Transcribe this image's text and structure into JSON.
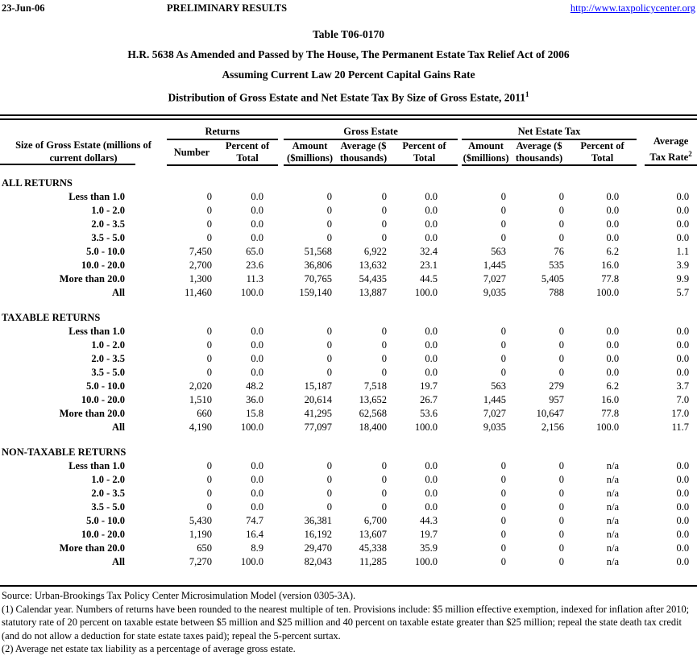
{
  "page": {
    "date": "23-Jun-06",
    "status": "PRELIMINARY RESULTS",
    "url": "http://www.taxpolicycenter.org"
  },
  "title": {
    "line1": "Table T06-0170",
    "line2": "H.R. 5638 As Amended and Passed by The House, The Permanent Estate Tax Relief Act of 2006",
    "line3": "Assuming Current Law 20 Percent Capital Gains Rate",
    "line4": "Distribution of Gross Estate and Net Estate Tax By Size of Gross Estate, 2011",
    "line4_sup": "1"
  },
  "table": {
    "row_header": "Size of Gross Estate (millions of\ncurrent dollars)",
    "groups": [
      {
        "label": "Returns",
        "columns": [
          "Number",
          "Percent of\nTotal"
        ]
      },
      {
        "label": "Gross Estate",
        "columns": [
          "Amount\n($millions)",
          "Average ($\nthousands)",
          "Percent of\nTotal"
        ]
      },
      {
        "label": "Net Estate Tax",
        "columns": [
          "Amount\n($millions)",
          "Average ($\nthousands)",
          "Percent of\nTotal"
        ]
      }
    ],
    "avg_header": {
      "line1": "Average",
      "line2": "Tax Rate",
      "sup": "2"
    },
    "sections": [
      {
        "name": "ALL RETURNS",
        "rows": [
          {
            "label": "Less than 1.0",
            "values": [
              "0",
              "0.0",
              "0",
              "0",
              "0.0",
              "0",
              "0",
              "0.0",
              "0.0"
            ]
          },
          {
            "label": "1.0 - 2.0",
            "values": [
              "0",
              "0.0",
              "0",
              "0",
              "0.0",
              "0",
              "0",
              "0.0",
              "0.0"
            ]
          },
          {
            "label": "2.0 - 3.5",
            "values": [
              "0",
              "0.0",
              "0",
              "0",
              "0.0",
              "0",
              "0",
              "0.0",
              "0.0"
            ]
          },
          {
            "label": "3.5 - 5.0",
            "values": [
              "0",
              "0.0",
              "0",
              "0",
              "0.0",
              "0",
              "0",
              "0.0",
              "0.0"
            ]
          },
          {
            "label": "5.0 - 10.0",
            "values": [
              "7,450",
              "65.0",
              "51,568",
              "6,922",
              "32.4",
              "563",
              "76",
              "6.2",
              "1.1"
            ]
          },
          {
            "label": "10.0 - 20.0",
            "values": [
              "2,700",
              "23.6",
              "36,806",
              "13,632",
              "23.1",
              "1,445",
              "535",
              "16.0",
              "3.9"
            ]
          },
          {
            "label": "More than 20.0",
            "values": [
              "1,300",
              "11.3",
              "70,765",
              "54,435",
              "44.5",
              "7,027",
              "5,405",
              "77.8",
              "9.9"
            ]
          },
          {
            "label": "All",
            "values": [
              "11,460",
              "100.0",
              "159,140",
              "13,887",
              "100.0",
              "9,035",
              "788",
              "100.0",
              "5.7"
            ]
          }
        ]
      },
      {
        "name": "TAXABLE RETURNS",
        "rows": [
          {
            "label": "Less than 1.0",
            "values": [
              "0",
              "0.0",
              "0",
              "0",
              "0.0",
              "0",
              "0",
              "0.0",
              "0.0"
            ]
          },
          {
            "label": "1.0 - 2.0",
            "values": [
              "0",
              "0.0",
              "0",
              "0",
              "0.0",
              "0",
              "0",
              "0.0",
              "0.0"
            ]
          },
          {
            "label": "2.0 - 3.5",
            "values": [
              "0",
              "0.0",
              "0",
              "0",
              "0.0",
              "0",
              "0",
              "0.0",
              "0.0"
            ]
          },
          {
            "label": "3.5 - 5.0",
            "values": [
              "0",
              "0.0",
              "0",
              "0",
              "0.0",
              "0",
              "0",
              "0.0",
              "0.0"
            ]
          },
          {
            "label": "5.0 - 10.0",
            "values": [
              "2,020",
              "48.2",
              "15,187",
              "7,518",
              "19.7",
              "563",
              "279",
              "6.2",
              "3.7"
            ]
          },
          {
            "label": "10.0 - 20.0",
            "values": [
              "1,510",
              "36.0",
              "20,614",
              "13,652",
              "26.7",
              "1,445",
              "957",
              "16.0",
              "7.0"
            ]
          },
          {
            "label": "More than 20.0",
            "values": [
              "660",
              "15.8",
              "41,295",
              "62,568",
              "53.6",
              "7,027",
              "10,647",
              "77.8",
              "17.0"
            ]
          },
          {
            "label": "All",
            "values": [
              "4,190",
              "100.0",
              "77,097",
              "18,400",
              "100.0",
              "9,035",
              "2,156",
              "100.0",
              "11.7"
            ]
          }
        ]
      },
      {
        "name": "NON-TAXABLE RETURNS",
        "rows": [
          {
            "label": "Less than 1.0",
            "values": [
              "0",
              "0.0",
              "0",
              "0",
              "0.0",
              "0",
              "0",
              "n/a",
              "0.0"
            ]
          },
          {
            "label": "1.0 - 2.0",
            "values": [
              "0",
              "0.0",
              "0",
              "0",
              "0.0",
              "0",
              "0",
              "n/a",
              "0.0"
            ]
          },
          {
            "label": "2.0 - 3.5",
            "values": [
              "0",
              "0.0",
              "0",
              "0",
              "0.0",
              "0",
              "0",
              "n/a",
              "0.0"
            ]
          },
          {
            "label": "3.5 - 5.0",
            "values": [
              "0",
              "0.0",
              "0",
              "0",
              "0.0",
              "0",
              "0",
              "n/a",
              "0.0"
            ]
          },
          {
            "label": "5.0 - 10.0",
            "values": [
              "5,430",
              "74.7",
              "36,381",
              "6,700",
              "44.3",
              "0",
              "0",
              "n/a",
              "0.0"
            ]
          },
          {
            "label": "10.0 - 20.0",
            "values": [
              "1,190",
              "16.4",
              "16,192",
              "13,607",
              "19.7",
              "0",
              "0",
              "n/a",
              "0.0"
            ]
          },
          {
            "label": "More than 20.0",
            "values": [
              "650",
              "8.9",
              "29,470",
              "45,338",
              "35.9",
              "0",
              "0",
              "n/a",
              "0.0"
            ]
          },
          {
            "label": "All",
            "values": [
              "7,270",
              "100.0",
              "82,043",
              "11,285",
              "100.0",
              "0",
              "0",
              "n/a",
              "0.0"
            ]
          }
        ]
      }
    ]
  },
  "footer": {
    "source": "Source: Urban-Brookings Tax Policy Center Microsimulation Model (version 0305-3A).",
    "note1": "(1) Calendar year. Numbers of returns have been rounded to the nearest multiple of ten. Provisions include: $5 million effective exemption, indexed for inflation after 2010;  statutory rate of 20 percent on taxable estate between $5 million and $25 million and 40 percent on taxable estate greater than $25 million; repeal the state death tax credit (and do not allow a deduction for state estate taxes paid); repeal the 5-percent surtax.",
    "note2": "(2) Average net estate tax liability as a percentage of average gross estate."
  },
  "colors": {
    "link": "#0000FF",
    "text": "#000000",
    "background": "#FFFFFF"
  }
}
